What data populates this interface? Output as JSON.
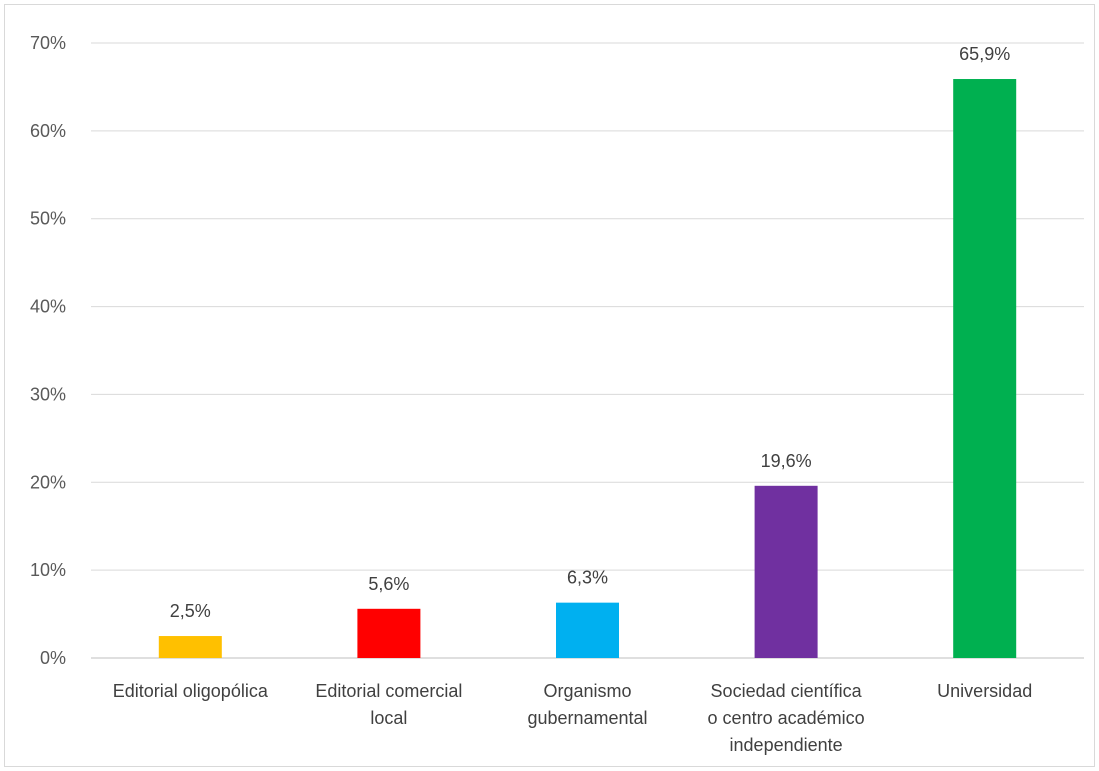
{
  "chart_data": {
    "type": "bar",
    "title": "",
    "xlabel": "",
    "ylabel": "",
    "ylim": [
      0,
      70
    ],
    "yticks": [
      "0%",
      "10%",
      "20%",
      "30%",
      "40%",
      "50%",
      "60%",
      "70%"
    ],
    "grid": true,
    "legend": "none",
    "categories": [
      [
        "Editorial oligopólica"
      ],
      [
        "Editorial comercial",
        "local"
      ],
      [
        "Organismo",
        "gubernamental"
      ],
      [
        "Sociedad científica",
        "o centro académico",
        "independiente"
      ],
      [
        "Universidad"
      ]
    ],
    "values": [
      2.5,
      5.6,
      6.3,
      19.6,
      65.9
    ],
    "data_labels": [
      "2,5%",
      "5,6%",
      "6,3%",
      "19,6%",
      "65,9%"
    ],
    "colors": [
      "#FFC000",
      "#FF0000",
      "#00B0F0",
      "#7030A0",
      "#00B050"
    ]
  }
}
